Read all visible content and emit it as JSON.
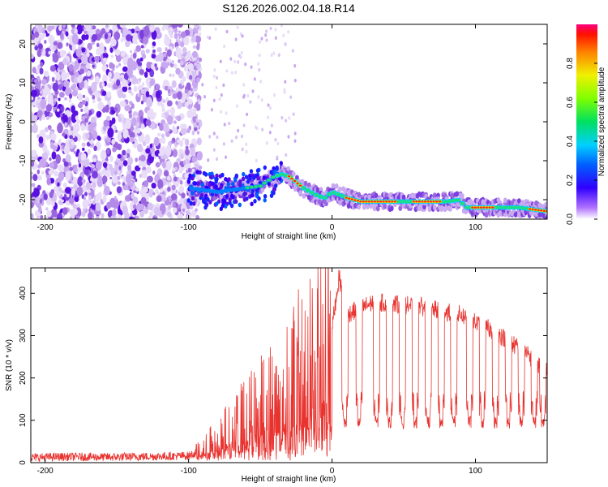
{
  "figure": {
    "title": "S126.2026.002.04.18.R14"
  },
  "chart_data": [
    {
      "type": "heatmap",
      "title": "S126.2026.002.04.18.R14",
      "xlabel": "Height of straight line (km)",
      "ylabel": "Frequency (Hz)",
      "xlim": [
        -210,
        150
      ],
      "ylim": [
        -25,
        25
      ],
      "x_ticks": [
        -200,
        -100,
        0,
        100
      ],
      "y_ticks": [
        -20,
        -10,
        0,
        10,
        20
      ],
      "ridge": {
        "description_points_x": [
          -100,
          -90,
          -80,
          -70,
          -60,
          -50,
          -40,
          -35,
          -30,
          -20,
          -10,
          -5,
          0,
          10,
          20,
          30,
          40,
          50,
          60,
          70,
          80,
          90,
          92,
          100,
          110,
          120,
          130,
          140,
          150
        ],
        "description_points_y": [
          -17,
          -17.5,
          -18,
          -17.5,
          -17,
          -16.5,
          -14,
          -13.5,
          -14,
          -17,
          -19,
          -19.5,
          -18,
          -19.5,
          -20.5,
          -20.5,
          -20.5,
          -20.5,
          -20.5,
          -20.5,
          -20.5,
          -20,
          -22,
          -22,
          -22,
          -22,
          -22,
          -22.5,
          -23
        ]
      },
      "colorbar": {
        "label": "Normalized spectral amplitude",
        "range": [
          0,
          1
        ],
        "ticks": [
          "0.0",
          "0.2",
          "0.4",
          "0.6",
          "0.8"
        ]
      }
    },
    {
      "type": "line",
      "xlabel": "Height of straight line (km)",
      "ylabel": "SNR (10 * v/v)",
      "xlim": [
        -210,
        150
      ],
      "ylim": [
        0,
        460
      ],
      "x_ticks": [
        -200,
        -100,
        0,
        100
      ],
      "y_ticks": [
        0,
        100,
        200,
        300,
        400
      ],
      "series": [
        {
          "name": "SNR",
          "color": "#e8332f",
          "x": [
            -210,
            -200,
            -180,
            -160,
            -140,
            -120,
            -100,
            -90,
            -80,
            -70,
            -60,
            -50,
            -40,
            -30,
            -20,
            -10,
            0,
            5,
            10,
            20,
            30,
            40,
            50,
            60,
            70,
            80,
            90,
            100,
            110,
            120,
            130,
            140,
            150
          ],
          "y": [
            12,
            13,
            14,
            13,
            14,
            15,
            16,
            30,
            60,
            90,
            110,
            140,
            160,
            190,
            230,
            270,
            320,
            440,
            350,
            365,
            380,
            375,
            372,
            370,
            362,
            355,
            350,
            330,
            315,
            295,
            270,
            245,
            215
          ]
        }
      ],
      "annotations": {
        "dropouts_x_km": [
          9,
          19,
          31,
          40,
          49,
          58,
          67,
          76,
          85,
          96,
          105,
          114,
          123,
          132,
          141,
          147
        ],
        "dropout_floor_snr": 80
      }
    }
  ]
}
